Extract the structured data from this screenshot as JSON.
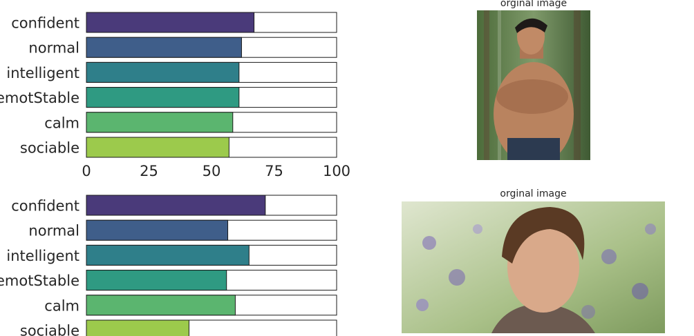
{
  "chart_data": [
    {
      "type": "bar",
      "orientation": "horizontal",
      "categories": [
        "confident",
        "normal",
        "intelligent",
        "emotStable",
        "calm",
        "sociable"
      ],
      "values": [
        67,
        62,
        61,
        61,
        58.5,
        57
      ],
      "xlim": [
        0,
        100
      ],
      "xticks": [
        "0",
        "25",
        "50",
        "75",
        "100"
      ],
      "colors": [
        "#4a3a7a",
        "#3f5e8a",
        "#2f7f8a",
        "#2f9a82",
        "#5bb56f",
        "#9cca4c"
      ],
      "grid": false
    },
    {
      "type": "bar",
      "orientation": "horizontal",
      "categories": [
        "confident",
        "normal",
        "intelligent",
        "emotStable",
        "calm",
        "sociable"
      ],
      "values": [
        71.5,
        56.5,
        65,
        56,
        59.5,
        41
      ],
      "xlim": [
        0,
        100
      ],
      "colors": [
        "#4a3a7a",
        "#3f5e8a",
        "#2f7f8a",
        "#2f9a82",
        "#5bb56f",
        "#9cca4c"
      ],
      "grid": false
    }
  ],
  "images": [
    {
      "title": "orginal image",
      "subject": "shirtless young man with arms crossed, forest background"
    },
    {
      "title": "orginal image",
      "subject": "young man with tousled hair, flower field background"
    }
  ]
}
